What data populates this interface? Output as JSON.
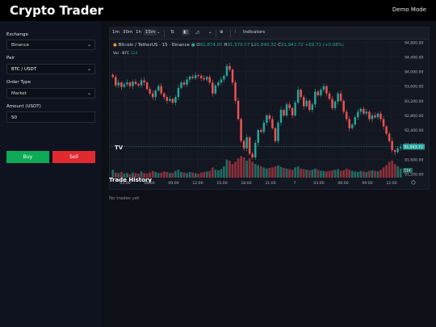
{
  "app": {
    "title": "Crypto Trader",
    "mode": "Demo Mode"
  },
  "sidebar": {
    "exchange_label": "Exchange",
    "exchange_value": "Binance",
    "pair_label": "Pair",
    "pair_value": "BTC / USDT",
    "order_type_label": "Order Type",
    "order_type_value": "Market",
    "amount_label": "Amount (USDT)",
    "amount_value": "50",
    "buy_label": "Buy",
    "sell_label": "Sell"
  },
  "toolbar": {
    "intervals": [
      "1m",
      "30m",
      "1h",
      "15m"
    ],
    "active_interval": "15m",
    "indicators_label": "Indicators"
  },
  "chart_header": {
    "symbol": "Bitcoin / TetherUS · 15 · Binance",
    "o_label": "O",
    "o_value": "91,874.00",
    "h_label": "H",
    "h_value": "91,970.07",
    "l_label": "L",
    "l_value": "91,840.32",
    "c_label": "C",
    "c_value": "91,943.72",
    "change": "+69.71 (+0.08%)",
    "vol_label": "Vol · BTC",
    "vol_value": "114"
  },
  "chart_data": {
    "type": "candlestick",
    "title": "Bitcoin / TetherUS · 15 · Binance",
    "x_tick_labels": [
      "03:00",
      "06:00",
      "09:00",
      "12:00",
      "15:00",
      "18:00",
      "21:00",
      "7",
      "03:00",
      "06:00",
      "09:00",
      "12:00"
    ],
    "y_tick_labels": [
      "94,800.00",
      "94,400.00",
      "94,000.00",
      "93,600.00",
      "93,200.00",
      "92,800.00",
      "92,400.00",
      "92,000.00",
      "91,600.00",
      "91,200.00"
    ],
    "ylim": [
      91100,
      94850
    ],
    "last_price": "91,943.72",
    "last_volume": "114",
    "close_path": [
      93850,
      93620,
      93700,
      93580,
      93650,
      93700,
      93600,
      93720,
      93660,
      93620,
      93760,
      93700,
      93520,
      93400,
      93300,
      93480,
      93600,
      93400,
      93300,
      93200,
      93250,
      93150,
      93300,
      93550,
      93700,
      93640,
      93780,
      93860,
      93820,
      93900,
      93880,
      93820,
      93780,
      93850,
      93700,
      93400,
      93620,
      93700,
      93780,
      93880,
      94150,
      94050,
      93700,
      93200,
      92700,
      92100,
      91900,
      92200,
      91750,
      91650,
      92050,
      92400,
      92350,
      92600,
      92800,
      92700,
      92450,
      92100,
      92600,
      92950,
      92800,
      93100,
      93000,
      92800,
      93150,
      93500,
      93300,
      93050,
      93200,
      92950,
      93100,
      93450,
      93350,
      93500,
      93600,
      93400,
      93250,
      93000,
      93180,
      93400,
      93200,
      92900,
      92700,
      92450,
      92550,
      92750,
      92900,
      92980,
      92850,
      92900,
      92700,
      92800,
      92750,
      92850,
      92700,
      92500,
      92300,
      92100,
      91850,
      91800,
      91900,
      91943.72
    ],
    "volume_path": [
      14,
      9,
      8,
      10,
      7,
      8,
      6,
      9,
      8,
      7,
      11,
      8,
      7,
      9,
      12,
      10,
      8,
      9,
      11,
      10,
      8,
      9,
      12,
      14,
      10,
      9,
      8,
      10,
      9,
      8,
      7,
      9,
      10,
      11,
      12,
      18,
      14,
      13,
      15,
      20,
      32,
      30,
      24,
      28,
      34,
      38,
      36,
      30,
      34,
      28,
      24,
      22,
      20,
      18,
      16,
      17,
      18,
      20,
      22,
      19,
      17,
      16,
      15,
      14,
      18,
      20,
      16,
      15,
      14,
      13,
      14,
      16,
      14,
      12,
      12,
      11,
      12,
      13,
      14,
      15,
      12,
      13,
      16,
      14,
      12,
      11,
      10,
      12,
      11,
      10,
      12,
      13,
      12,
      11,
      14,
      18,
      22,
      28,
      30,
      24,
      20,
      16
    ]
  },
  "trade_history": {
    "title": "Trade History",
    "empty_text": "No trades yet"
  }
}
